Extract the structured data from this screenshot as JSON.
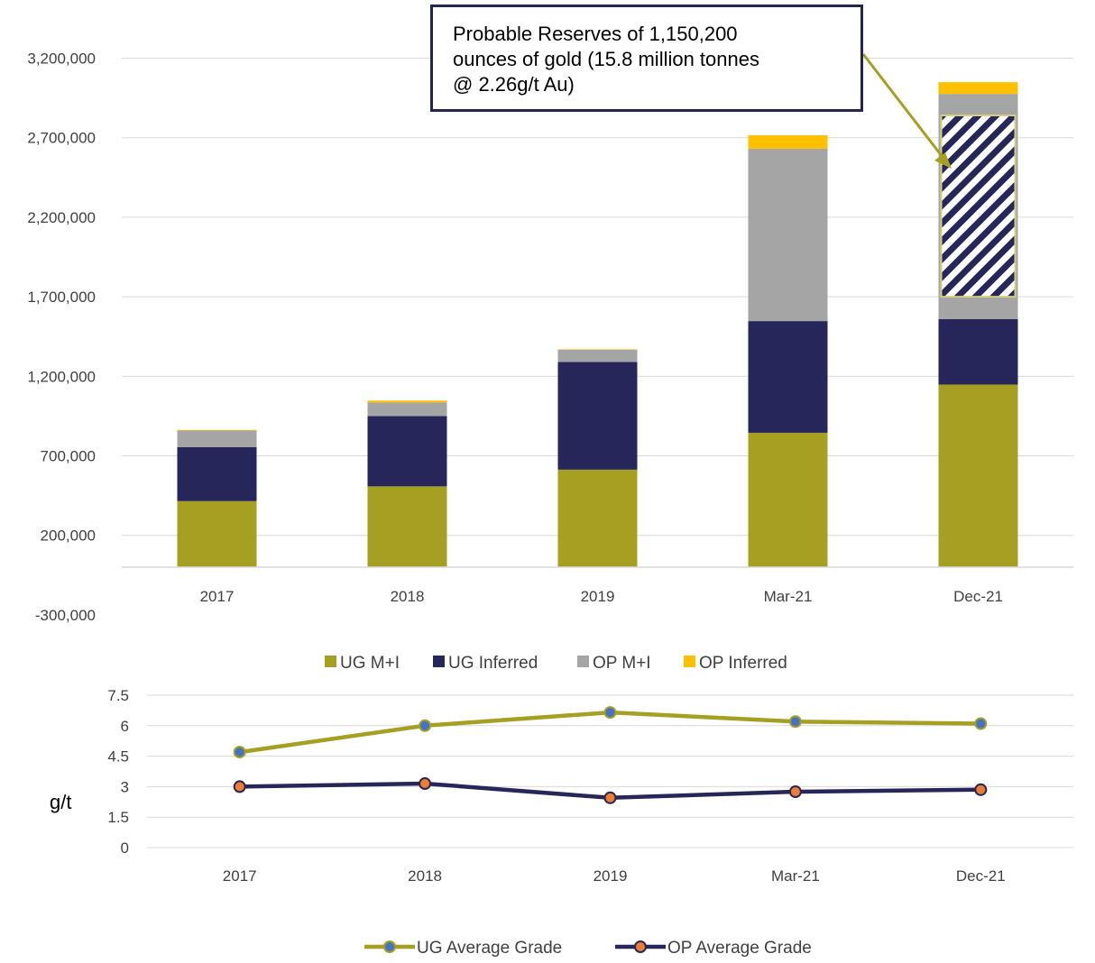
{
  "chart_data": [
    {
      "type": "bar",
      "stacked": true,
      "categories": [
        "2017",
        "2018",
        "2019",
        "Mar-21",
        "Dec-21"
      ],
      "series": [
        {
          "name": "UG M+I",
          "color": "#A6A022",
          "values": [
            415000,
            508000,
            613000,
            845000,
            1148000
          ]
        },
        {
          "name": "UG Inferred",
          "color": "#26265A",
          "values": [
            339000,
            442000,
            677000,
            702000,
            412000
          ]
        },
        {
          "name": "OP M+I",
          "color": "#A5A5A5",
          "values": [
            105000,
            85000,
            77000,
            1084000,
            1415000
          ]
        },
        {
          "name": "OP Inferred",
          "color": "#FFC000",
          "values": [
            4000,
            12000,
            3000,
            84000,
            74000
          ]
        }
      ],
      "yticks": [
        "3,200,000",
        "2,700,000",
        "2,200,000",
        "1,700,000",
        "1,200,000",
        "700,000",
        "200,000",
        "-300,000"
      ],
      "ytick_values": [
        3200000,
        2700000,
        2200000,
        1700000,
        1200000,
        700000,
        200000,
        -300000
      ],
      "ylim": [
        -300000,
        3200000
      ],
      "grid": true,
      "legend": "bottom",
      "hatched_box": {
        "category": "Dec-21",
        "from": 1700000,
        "to": 2840000
      },
      "annotation": {
        "text": "Probable Reserves of 1,150,200\nounces of gold (15.8 million tonnes\n@ 2.26g/t Au)",
        "arrow_to": "Dec-21"
      }
    },
    {
      "type": "line",
      "categories": [
        "2017",
        "2018",
        "2019",
        "Mar-21",
        "Dec-21"
      ],
      "series": [
        {
          "name": "UG Average Grade",
          "color": "#A6A022",
          "marker": "#4472C4",
          "values": [
            4.7,
            6.0,
            6.65,
            6.2,
            6.1
          ]
        },
        {
          "name": "OP Average Grade",
          "color": "#26265A",
          "marker": "#ED7D31",
          "values": [
            3.0,
            3.15,
            2.45,
            2.75,
            2.85
          ]
        }
      ],
      "yticks": [
        "7.5",
        "6",
        "4.5",
        "3",
        "1.5",
        "0"
      ],
      "ytick_values": [
        7.5,
        6,
        4.5,
        3,
        1.5,
        0
      ],
      "ylim": [
        0,
        7.5
      ],
      "ylabel": "g/t",
      "grid": true,
      "legend": "bottom"
    }
  ]
}
